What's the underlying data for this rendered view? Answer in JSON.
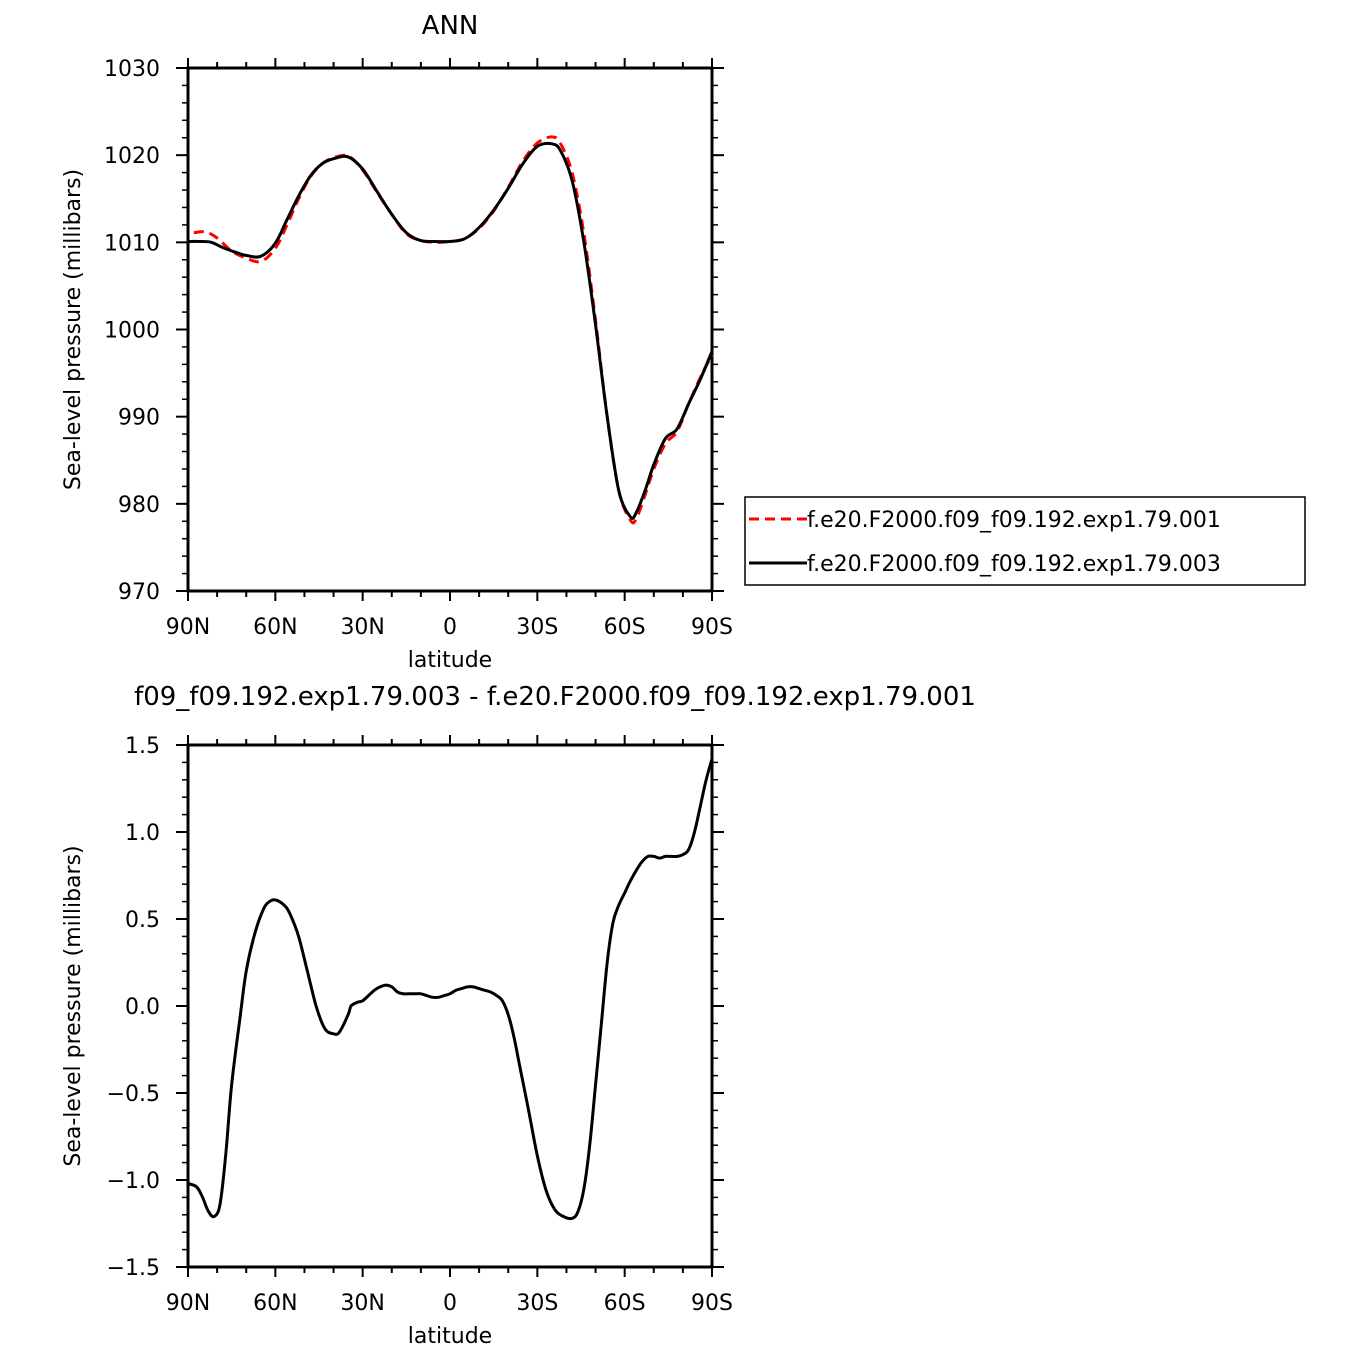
{
  "chart_data": [
    {
      "type": "line",
      "title": "ANN",
      "xlabel": "latitude",
      "ylabel": "Sea-level pressure (millibars)",
      "xticks": [
        "90N",
        "60N",
        "30N",
        "0",
        "30S",
        "60S",
        "90S"
      ],
      "yticks": [
        "1030",
        "1020",
        "1010",
        "1000",
        "990",
        "980",
        "970"
      ],
      "xlim": [
        90,
        -90
      ],
      "ylim": [
        970,
        1030
      ],
      "legend_position": "right",
      "series": [
        {
          "name": "f.e20.F2000.f09_f09.192.exp1.79.001",
          "color": "#ff0000",
          "dash": "dashed",
          "x": [
            88,
            84,
            80,
            75,
            70,
            65,
            60,
            56,
            52,
            48,
            44,
            40,
            35,
            30,
            25,
            20,
            15,
            10,
            5,
            0,
            -5,
            -10,
            -15,
            -20,
            -25,
            -30,
            -35,
            -38,
            -42,
            -46,
            -50,
            -54,
            -58,
            -62,
            -64,
            -67,
            -70,
            -74,
            -78,
            -82,
            -86,
            -90
          ],
          "values": [
            1011.1,
            1011.2,
            1010.5,
            1009.0,
            1008.2,
            1007.8,
            1009.3,
            1012.0,
            1015.0,
            1017.5,
            1019.0,
            1019.7,
            1019.9,
            1018.3,
            1015.7,
            1013.2,
            1011.0,
            1010.2,
            1010.0,
            1010.1,
            1010.4,
            1011.6,
            1013.6,
            1016.3,
            1019.3,
            1021.4,
            1022.1,
            1021.3,
            1017.9,
            1011.0,
            1001.0,
            990.0,
            981.5,
            978.1,
            978.3,
            981.0,
            984.0,
            986.9,
            988.3,
            991.5,
            994.5,
            997.1
          ]
        },
        {
          "name": "f.e20.F2000.f09_f09.192.exp1.79.003",
          "color": "#000000",
          "dash": "solid",
          "x": [
            90,
            86,
            82,
            78,
            74,
            70,
            65,
            60,
            56,
            52,
            48,
            44,
            40,
            35,
            30,
            25,
            20,
            15,
            10,
            5,
            0,
            -5,
            -10,
            -15,
            -20,
            -25,
            -30,
            -35,
            -38,
            -42,
            -46,
            -50,
            -54,
            -58,
            -62,
            -64,
            -67,
            -70,
            -74,
            -78,
            -82,
            -86,
            -90
          ],
          "values": [
            1010.1,
            1010.1,
            1010.0,
            1009.4,
            1008.9,
            1008.5,
            1008.4,
            1009.9,
            1012.6,
            1015.3,
            1017.6,
            1019.0,
            1019.6,
            1019.8,
            1018.4,
            1015.8,
            1013.2,
            1011.1,
            1010.2,
            1010.1,
            1010.1,
            1010.4,
            1011.7,
            1013.7,
            1016.2,
            1019.0,
            1021.0,
            1021.3,
            1020.5,
            1017.0,
            1010.0,
            1000.5,
            990.0,
            981.5,
            978.5,
            979.0,
            981.5,
            984.5,
            987.5,
            988.6,
            991.5,
            994.3,
            997.5
          ]
        }
      ]
    },
    {
      "type": "line",
      "title": "f09_f09.192.exp1.79.003 - f.e20.F2000.f09_f09.192.exp1.79.001",
      "xlabel": "latitude",
      "ylabel": "Sea-level pressure (millibars)",
      "xticks": [
        "90N",
        "60N",
        "30N",
        "0",
        "30S",
        "60S",
        "90S"
      ],
      "yticks": [
        "1.5",
        "1.0",
        "0.5",
        "0.0",
        "−0.5",
        "−1.0",
        "−1.5"
      ],
      "xlim": [
        90,
        -90
      ],
      "ylim": [
        -1.5,
        1.5
      ],
      "series": [
        {
          "color": "#000000",
          "dash": "solid",
          "x": [
            90,
            87,
            85,
            83,
            81,
            79,
            77,
            75,
            72,
            70,
            67,
            64,
            62,
            60,
            57,
            55,
            52,
            49,
            46,
            43,
            40,
            38,
            35,
            34,
            32,
            30,
            28,
            26,
            24,
            22,
            20,
            18,
            16,
            14,
            12,
            10,
            8,
            6,
            4,
            2,
            0,
            -2,
            -4,
            -6,
            -8,
            -10,
            -12,
            -14,
            -16,
            -18,
            -20,
            -22,
            -24,
            -27,
            -30,
            -33,
            -36,
            -39,
            -42,
            -44,
            -46,
            -48,
            -50,
            -52,
            -54,
            -56,
            -58,
            -60,
            -62,
            -64,
            -66,
            -68,
            -70,
            -72,
            -74,
            -76,
            -78,
            -80,
            -82,
            -84,
            -86,
            -88,
            -90
          ],
          "values": [
            -1.02,
            -1.04,
            -1.1,
            -1.18,
            -1.21,
            -1.14,
            -0.85,
            -0.45,
            -0.05,
            0.2,
            0.42,
            0.56,
            0.6,
            0.61,
            0.58,
            0.53,
            0.4,
            0.2,
            0.0,
            -0.13,
            -0.16,
            -0.15,
            -0.05,
            0.0,
            0.02,
            0.03,
            0.06,
            0.09,
            0.11,
            0.12,
            0.11,
            0.08,
            0.07,
            0.07,
            0.07,
            0.07,
            0.06,
            0.05,
            0.05,
            0.06,
            0.07,
            0.09,
            0.1,
            0.11,
            0.11,
            0.1,
            0.09,
            0.08,
            0.06,
            0.03,
            -0.05,
            -0.18,
            -0.35,
            -0.6,
            -0.86,
            -1.06,
            -1.17,
            -1.21,
            -1.22,
            -1.18,
            -1.05,
            -0.8,
            -0.45,
            -0.1,
            0.25,
            0.48,
            0.58,
            0.65,
            0.72,
            0.78,
            0.83,
            0.86,
            0.86,
            0.85,
            0.86,
            0.86,
            0.86,
            0.87,
            0.9,
            1.0,
            1.15,
            1.3,
            1.42
          ]
        }
      ]
    }
  ]
}
